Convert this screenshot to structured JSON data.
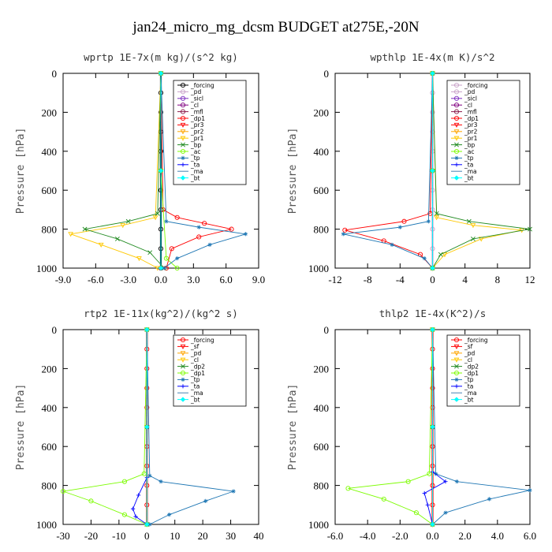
{
  "figure": {
    "title": "jan24_micro_mg_dcsm  BUDGET at275E,-20N"
  },
  "chart_data": [
    {
      "type": "line",
      "title": "wprtp   1E-7x(m kg)/(s^2 kg)",
      "ylabel": "Pressure [hPa]",
      "xlim": [
        -9,
        9
      ],
      "ylim": [
        1000,
        0
      ],
      "xticks": [
        "-9.0",
        "-6.0",
        "-3.0",
        "0.0",
        "3.0",
        "6.0",
        "9.0"
      ],
      "yticks": [
        "0",
        "200",
        "400",
        "600",
        "800",
        "1000"
      ],
      "legend": "top-right",
      "series": [
        {
          "name": "_forcing",
          "color": "#000000",
          "marker": "o",
          "x": [
            0,
            0,
            0,
            0,
            0,
            0,
            0,
            0,
            0,
            0,
            0
          ],
          "y": [
            0,
            100,
            200,
            300,
            400,
            500,
            600,
            700,
            800,
            900,
            1000
          ]
        },
        {
          "name": "_pd",
          "color": "#c8a2c8",
          "marker": "o",
          "x": [
            0,
            0,
            0
          ],
          "y": [
            0,
            500,
            1000
          ]
        },
        {
          "name": "_sicl",
          "color": "#7b2cbf",
          "marker": "o",
          "x": [
            0,
            0,
            0
          ],
          "y": [
            0,
            500,
            1000
          ]
        },
        {
          "name": "_cl",
          "color": "#800080",
          "marker": "o",
          "x": [
            0,
            0,
            0
          ],
          "y": [
            0,
            500,
            1000
          ]
        },
        {
          "name": "_mfl",
          "color": "#8b1a4a",
          "marker": "o",
          "x": [
            0,
            0,
            0
          ],
          "y": [
            0,
            500,
            1000
          ]
        },
        {
          "name": "_dp1",
          "color": "#ff0000",
          "marker": "o",
          "x": [
            0,
            0.2,
            1.5,
            4.0,
            6.5,
            3.5,
            1.0,
            0.5
          ],
          "y": [
            0,
            700,
            740,
            770,
            800,
            840,
            900,
            1000
          ]
        },
        {
          "name": "_pr3",
          "color": "#ff0000",
          "marker": "v",
          "x": [
            0,
            0,
            0
          ],
          "y": [
            0,
            500,
            1000
          ]
        },
        {
          "name": "_pr2",
          "color": "#ffa500",
          "marker": "v",
          "x": [
            0,
            0,
            0
          ],
          "y": [
            0,
            500,
            1000
          ]
        },
        {
          "name": "_pr1",
          "color": "#ffc800",
          "marker": "v",
          "x": [
            0,
            -0.5,
            -3.5,
            -8.3,
            -5.5,
            -2.0,
            -0.3
          ],
          "y": [
            0,
            740,
            780,
            825,
            880,
            950,
            1000
          ]
        },
        {
          "name": "_bp",
          "color": "#228b22",
          "marker": "x",
          "x": [
            0,
            -0.3,
            -3.0,
            -7.0,
            -4.0,
            -1.0,
            0.3
          ],
          "y": [
            0,
            720,
            760,
            800,
            850,
            920,
            1000
          ]
        },
        {
          "name": "_ac",
          "color": "#7cfc00",
          "marker": "o",
          "x": [
            0,
            0,
            0.5,
            1.5
          ],
          "y": [
            0,
            500,
            950,
            1000
          ]
        },
        {
          "name": "_tp",
          "color": "#1f77b4",
          "marker": "*",
          "x": [
            0,
            0.5,
            3.5,
            7.8,
            4.5,
            1.5,
            0.3
          ],
          "y": [
            0,
            760,
            790,
            825,
            880,
            950,
            1000
          ]
        },
        {
          "name": "_ta",
          "color": "#0000ff",
          "marker": "+",
          "x": [
            0,
            0,
            0
          ],
          "y": [
            0,
            500,
            1000
          ]
        },
        {
          "name": "_ma",
          "color": "#4682b4",
          "marker": "-",
          "x": [
            0,
            0,
            0
          ],
          "y": [
            0,
            500,
            1000
          ]
        },
        {
          "name": "_bt",
          "color": "#00ffff",
          "marker": "D",
          "x": [
            0,
            0,
            0
          ],
          "y": [
            0,
            500,
            1000
          ]
        }
      ]
    },
    {
      "type": "line",
      "title": "wpthlp   1E-4x(m K)/s^2",
      "ylabel": "Pressure [hPa]",
      "xlim": [
        -12,
        12
      ],
      "ylim": [
        1000,
        0
      ],
      "xticks": [
        "-12",
        "-8",
        "-4",
        "0",
        "4",
        "8",
        "12"
      ],
      "yticks": [
        "0",
        "200",
        "400",
        "600",
        "800",
        "1000"
      ],
      "legend": "top-right",
      "series": [
        {
          "name": "_forcing",
          "color": "#c8a2c8",
          "marker": "o",
          "x": [
            0,
            0,
            0,
            0,
            0,
            0,
            0,
            0,
            0,
            0,
            0
          ],
          "y": [
            0,
            100,
            200,
            300,
            400,
            500,
            600,
            700,
            800,
            900,
            1000
          ]
        },
        {
          "name": "_pd",
          "color": "#c8a2c8",
          "marker": "o",
          "x": [
            0,
            0,
            0
          ],
          "y": [
            0,
            500,
            1000
          ]
        },
        {
          "name": "_sicl",
          "color": "#7b2cbf",
          "marker": "o",
          "x": [
            0,
            0,
            0
          ],
          "y": [
            0,
            500,
            1000
          ]
        },
        {
          "name": "_cl",
          "color": "#800080",
          "marker": "o",
          "x": [
            0,
            0,
            0
          ],
          "y": [
            0,
            500,
            1000
          ]
        },
        {
          "name": "_mfl",
          "color": "#8b1a4a",
          "marker": "o",
          "x": [
            0,
            0,
            0
          ],
          "y": [
            0,
            500,
            1000
          ]
        },
        {
          "name": "_dp1",
          "color": "#ff0000",
          "marker": "o",
          "x": [
            0,
            -0.3,
            -3.5,
            -10.8,
            -6.0,
            -1.5,
            0
          ],
          "y": [
            0,
            720,
            760,
            805,
            860,
            930,
            1000
          ]
        },
        {
          "name": "_pr3",
          "color": "#ff0000",
          "marker": "v",
          "x": [
            0,
            0,
            0
          ],
          "y": [
            0,
            500,
            1000
          ]
        },
        {
          "name": "_pr2",
          "color": "#ffa500",
          "marker": "v",
          "x": [
            0,
            0,
            0
          ],
          "y": [
            0,
            500,
            1000
          ]
        },
        {
          "name": "_pr1",
          "color": "#ffc800",
          "marker": "v",
          "x": [
            0,
            0.5,
            5.0,
            11.0,
            6.0,
            1.5,
            0
          ],
          "y": [
            0,
            740,
            780,
            805,
            850,
            930,
            1000
          ]
        },
        {
          "name": "_bp",
          "color": "#228b22",
          "marker": "x",
          "x": [
            0,
            0.5,
            4.5,
            12.0,
            5.0,
            1.0,
            0
          ],
          "y": [
            0,
            720,
            760,
            800,
            850,
            930,
            1000
          ]
        },
        {
          "name": "_ac",
          "color": "#7cfc00",
          "marker": "o",
          "x": [
            0,
            0,
            0
          ],
          "y": [
            0,
            500,
            1000
          ]
        },
        {
          "name": "_tp",
          "color": "#1f77b4",
          "marker": "*",
          "x": [
            0,
            -0.5,
            -4.0,
            -11.0,
            -5.0,
            -1.0,
            0
          ],
          "y": [
            0,
            760,
            790,
            825,
            880,
            950,
            1000
          ]
        },
        {
          "name": "_ta",
          "color": "#0000ff",
          "marker": "+",
          "x": [
            0,
            0,
            0
          ],
          "y": [
            0,
            500,
            1000
          ]
        },
        {
          "name": "_ma",
          "color": "#4682b4",
          "marker": "-",
          "x": [
            0,
            0,
            0
          ],
          "y": [
            0,
            500,
            1000
          ]
        },
        {
          "name": "_bt",
          "color": "#00ffff",
          "marker": "D",
          "x": [
            0,
            0,
            0
          ],
          "y": [
            0,
            500,
            1000
          ]
        }
      ]
    },
    {
      "type": "line",
      "title": "rtp2   1E-11x(kg^2)/(kg^2 s)",
      "ylabel": "Pressure [hPa]",
      "xlim": [
        -30,
        40
      ],
      "ylim": [
        1000,
        0
      ],
      "xticks": [
        "-30",
        "-20",
        "-10",
        "0",
        "10",
        "20",
        "30",
        "40"
      ],
      "yticks": [
        "0",
        "200",
        "400",
        "600",
        "800",
        "1000"
      ],
      "legend": "top-right",
      "series": [
        {
          "name": "_forcing",
          "color": "#ff0000",
          "marker": "o",
          "x": [
            0,
            0,
            0,
            0,
            0,
            0,
            0,
            0,
            0,
            0,
            0
          ],
          "y": [
            0,
            100,
            200,
            300,
            400,
            500,
            600,
            700,
            800,
            900,
            1000
          ]
        },
        {
          "name": "_sf",
          "color": "#ff0000",
          "marker": "v",
          "x": [
            0,
            0,
            0
          ],
          "y": [
            0,
            500,
            1000
          ]
        },
        {
          "name": "_pd",
          "color": "#ffa500",
          "marker": "v",
          "x": [
            0,
            0,
            0
          ],
          "y": [
            0,
            500,
            1000
          ]
        },
        {
          "name": "_cl",
          "color": "#ffc800",
          "marker": "v",
          "x": [
            0,
            0,
            0
          ],
          "y": [
            0,
            500,
            1000
          ]
        },
        {
          "name": "_dp2",
          "color": "#228b22",
          "marker": "x",
          "x": [
            0,
            0,
            0
          ],
          "y": [
            0,
            500,
            1000
          ]
        },
        {
          "name": "_dp1",
          "color": "#7cfc00",
          "marker": "o",
          "x": [
            0,
            -1,
            -8,
            -30,
            -20,
            -8,
            0
          ],
          "y": [
            0,
            740,
            780,
            830,
            880,
            950,
            1000
          ]
        },
        {
          "name": "_tp",
          "color": "#1f77b4",
          "marker": "*",
          "x": [
            0,
            1,
            5,
            31,
            21,
            8,
            1
          ],
          "y": [
            0,
            750,
            780,
            830,
            880,
            950,
            1000
          ]
        },
        {
          "name": "_ta",
          "color": "#0000ff",
          "marker": "+",
          "x": [
            0,
            0,
            -3,
            -5,
            -4,
            0
          ],
          "y": [
            0,
            760,
            850,
            920,
            960,
            1000
          ]
        },
        {
          "name": "_ma",
          "color": "#4682b4",
          "marker": "-",
          "x": [
            0,
            0,
            0
          ],
          "y": [
            0,
            500,
            1000
          ]
        },
        {
          "name": "_bt",
          "color": "#00ffff",
          "marker": "D",
          "x": [
            0,
            0,
            0
          ],
          "y": [
            0,
            500,
            1000
          ]
        }
      ]
    },
    {
      "type": "line",
      "title": "thlp2   1E-4x(K^2)/s",
      "ylabel": "Pressure [hPa]",
      "xlim": [
        -6,
        6
      ],
      "ylim": [
        1000,
        0
      ],
      "xticks": [
        "-6.0",
        "-4.0",
        "-2.0",
        "0.0",
        "2.0",
        "4.0",
        "6.0"
      ],
      "yticks": [
        "0",
        "200",
        "400",
        "600",
        "800",
        "1000"
      ],
      "legend": "top-right",
      "series": [
        {
          "name": "_forcing",
          "color": "#ff0000",
          "marker": "o",
          "x": [
            0,
            0,
            0,
            0,
            0,
            0,
            0,
            0,
            0,
            0,
            0
          ],
          "y": [
            0,
            100,
            200,
            300,
            400,
            500,
            600,
            700,
            800,
            900,
            1000
          ]
        },
        {
          "name": "_sf",
          "color": "#ff0000",
          "marker": "v",
          "x": [
            0,
            0,
            0
          ],
          "y": [
            0,
            500,
            1000
          ]
        },
        {
          "name": "_pd",
          "color": "#ffa500",
          "marker": "v",
          "x": [
            0,
            0,
            0
          ],
          "y": [
            0,
            500,
            1000
          ]
        },
        {
          "name": "_cl",
          "color": "#ffc800",
          "marker": "v",
          "x": [
            0,
            0,
            0
          ],
          "y": [
            0,
            500,
            1000
          ]
        },
        {
          "name": "_dp2",
          "color": "#228b22",
          "marker": "x",
          "x": [
            0,
            0,
            0
          ],
          "y": [
            0,
            500,
            1000
          ]
        },
        {
          "name": "_dp1",
          "color": "#7cfc00",
          "marker": "o",
          "x": [
            0,
            -0.2,
            -1.5,
            -5.2,
            -3.0,
            -1.0,
            0
          ],
          "y": [
            0,
            740,
            780,
            815,
            870,
            940,
            1000
          ]
        },
        {
          "name": "_tp",
          "color": "#1f77b4",
          "marker": "*",
          "x": [
            0,
            0.2,
            1.5,
            6.0,
            3.5,
            0.8,
            0
          ],
          "y": [
            0,
            740,
            780,
            825,
            870,
            940,
            1000
          ]
        },
        {
          "name": "_ta",
          "color": "#0000ff",
          "marker": "+",
          "x": [
            0,
            0,
            0.8,
            -0.5,
            -0.3,
            0
          ],
          "y": [
            0,
            730,
            780,
            840,
            900,
            1000
          ]
        },
        {
          "name": "_ma",
          "color": "#4682b4",
          "marker": "-",
          "x": [
            0,
            0,
            0
          ],
          "y": [
            0,
            500,
            1000
          ]
        },
        {
          "name": "_bt",
          "color": "#00ffff",
          "marker": "D",
          "x": [
            0,
            0,
            0
          ],
          "y": [
            0,
            500,
            1000
          ]
        }
      ]
    }
  ]
}
